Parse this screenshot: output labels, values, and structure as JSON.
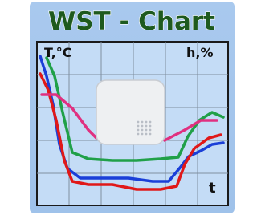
{
  "title": "WST - Chart",
  "y_axis_label": "T,°C",
  "y2_axis_label": "h,%",
  "x_axis_label": "t"
}
